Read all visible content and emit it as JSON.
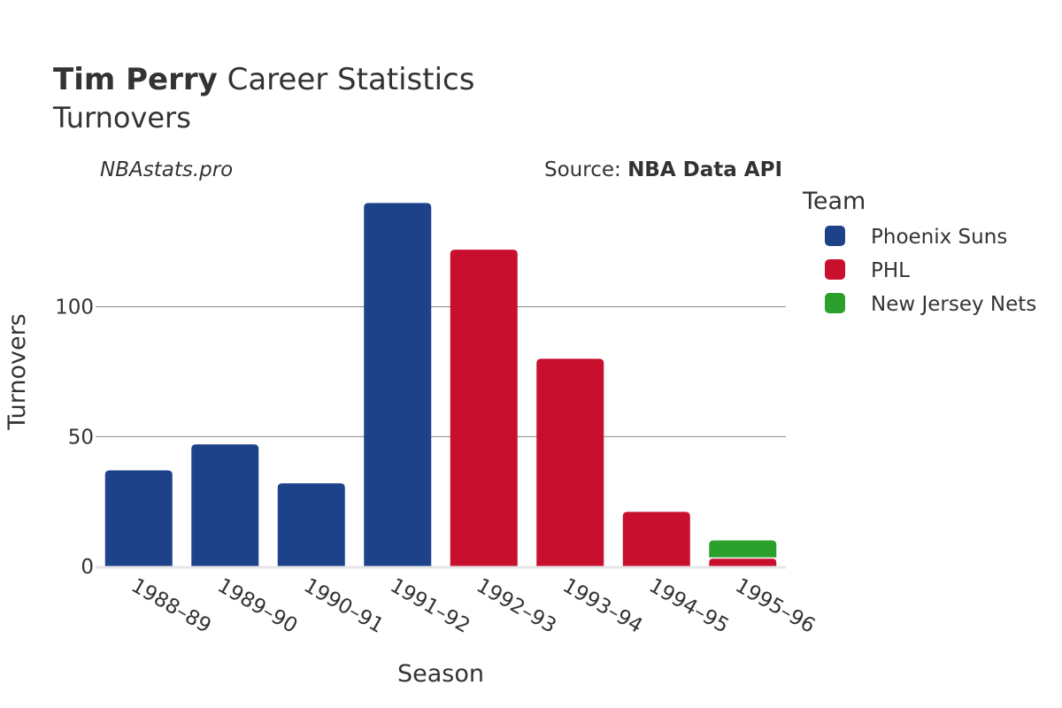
{
  "chart_data": {
    "type": "bar",
    "title_bold": "Tim Perry",
    "title_rest": " Career Statistics",
    "subtitle": "Turnovers",
    "watermark": "NBAstats.pro",
    "source_prefix": "Source: ",
    "source_bold": "NBA Data API",
    "xlabel": "Season",
    "ylabel": "Turnovers",
    "ylim": [
      0,
      150
    ],
    "yticks": [
      0,
      50,
      100
    ],
    "legend_title": "Team",
    "categories": [
      "1988–89",
      "1989–90",
      "1990–91",
      "1991–92",
      "1992–93",
      "1993–94",
      "1994–95",
      "1995–96"
    ],
    "series": [
      {
        "name": "Phoenix Suns",
        "color": "#1d428a",
        "values": [
          37,
          47,
          32,
          140,
          0,
          0,
          0,
          0
        ]
      },
      {
        "name": "PHL",
        "color": "#c8102e",
        "values": [
          0,
          0,
          0,
          0,
          122,
          80,
          21,
          3
        ]
      },
      {
        "name": "New Jersey Nets",
        "color": "#2ca02c",
        "values": [
          0,
          0,
          0,
          0,
          0,
          0,
          0,
          7
        ]
      }
    ]
  }
}
